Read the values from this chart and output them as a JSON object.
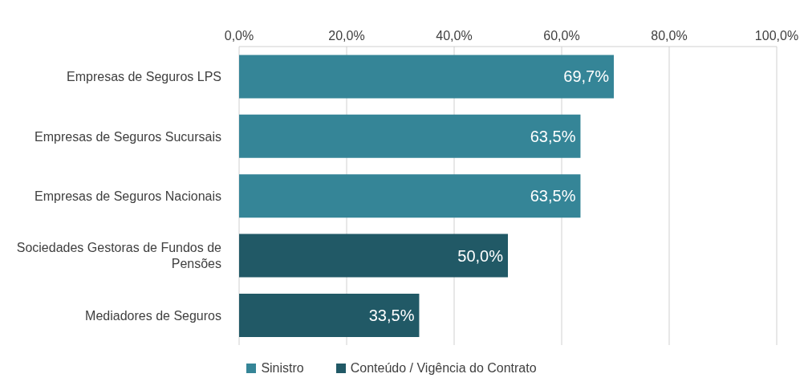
{
  "chart_data": {
    "type": "bar",
    "orientation": "horizontal",
    "stacked": true,
    "categories": [
      "Empresas de Seguros LPS",
      "Empresas de Seguros Sucursais",
      "Empresas de Seguros Nacionais",
      "Sociedades Gestoras de Fundos de Pensões",
      "Mediadores de Seguros"
    ],
    "series": [
      {
        "name": "Sinistro",
        "color": "#358597",
        "values": [
          69.7,
          63.5,
          63.5,
          null,
          null
        ],
        "value_labels": [
          "69,7%",
          "63,5%",
          "63,5%",
          null,
          null
        ]
      },
      {
        "name": "Conteúdo / Vigência do Contrato",
        "color": "#215966",
        "values": [
          null,
          null,
          null,
          50.0,
          33.5
        ],
        "value_labels": [
          null,
          null,
          null,
          "50,0%",
          "33,5%"
        ]
      }
    ],
    "xlim": [
      0,
      100
    ],
    "xticks": [
      {
        "value": 0,
        "label": "0,0%"
      },
      {
        "value": 20,
        "label": "20,0%"
      },
      {
        "value": 40,
        "label": "40,0%"
      },
      {
        "value": 60,
        "label": "60,0%"
      },
      {
        "value": 80,
        "label": "80,0%"
      },
      {
        "value": 100,
        "label": "100,0%"
      }
    ],
    "grid": "x",
    "legend": "bottom"
  }
}
